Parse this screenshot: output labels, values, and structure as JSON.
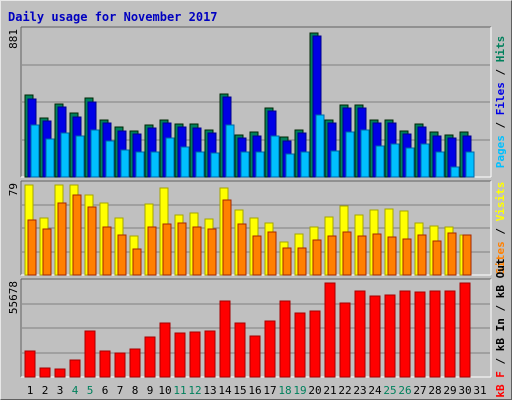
{
  "chart_data": {
    "title": "Daily usage for November 2017",
    "type": "bar",
    "days": [
      1,
      2,
      3,
      4,
      5,
      6,
      7,
      8,
      9,
      10,
      11,
      12,
      13,
      14,
      15,
      16,
      17,
      18,
      19,
      20,
      21,
      22,
      23,
      24,
      25,
      26,
      27,
      28,
      29,
      30,
      31
    ],
    "weekend_days": [
      4,
      5,
      11,
      12,
      18,
      19,
      25,
      26
    ],
    "panels": [
      {
        "name": "hits-files-pages",
        "ymax": 881,
        "ymax_label": "881",
        "axis_label": [
          "Pages",
          " / ",
          "Files",
          " / ",
          "Hits"
        ],
        "series": [
          {
            "name": "Hits",
            "color": "#00805c",
            "values": [
              495,
              355,
              440,
              385,
              475,
              345,
              300,
              280,
              315,
              345,
              322,
              318,
              285,
              500,
              255,
              270,
              418,
              240,
              285,
              870,
              345,
              435,
              435,
              345,
              345,
              280,
              320,
              270,
              255,
              270
            ]
          },
          {
            "name": "Files",
            "color": "#0000e6",
            "values": [
              470,
              335,
              420,
              365,
              455,
              325,
              280,
              260,
              295,
              325,
              302,
              298,
              265,
              480,
              235,
              250,
              398,
              220,
              265,
              850,
              325,
              415,
              415,
              325,
              325,
              260,
              300,
              250,
              235,
              250
            ]
          },
          {
            "name": "Pages",
            "color": "#00c0ff",
            "values": [
              315,
              230,
              265,
              250,
              285,
              220,
              160,
              150,
              150,
              235,
              180,
              150,
              145,
              315,
              150,
              150,
              250,
              140,
              150,
              375,
              155,
              270,
              285,
              190,
              200,
              175,
              200,
              150,
              60,
              150
            ]
          }
        ]
      },
      {
        "name": "visits-sites",
        "ymax": 79,
        "ymax_label": "79",
        "axis_label": [
          "Sites",
          " / ",
          "Visits"
        ],
        "series": [
          {
            "name": "Visits",
            "color": "#ffff00",
            "values": [
              79,
              50,
              79,
              79,
              70,
              63,
              50,
              34,
              62,
              76,
              53,
              54,
              49,
              76,
              57,
              50,
              46,
              29,
              36,
              42,
              51,
              61,
              53,
              57,
              58,
              56,
              46,
              43,
              42,
              35
            ]
          },
          {
            "name": "Sites",
            "color": "#ff8000",
            "values": [
              48,
              40,
              63,
              70,
              60,
              42,
              35,
              23,
              42,
              45,
              46,
              42,
              40,
              66,
              45,
              34,
              38,
              24,
              24,
              31,
              34,
              38,
              34,
              36,
              33,
              32,
              35,
              30,
              37,
              35
            ]
          }
        ]
      },
      {
        "name": "kbytes",
        "ymax": 55678,
        "ymax_label": "55678",
        "axis_label": [
          "kB F",
          " / ",
          "kB In",
          " / ",
          "kB Out"
        ],
        "series": [
          {
            "name": "kB F",
            "color": "#ff0000",
            "values": [
              15500,
              5500,
              5000,
              9800,
              27500,
              15500,
              14500,
              16500,
              23500,
              31700,
              26000,
              26500,
              27000,
              45000,
              32000,
              24000,
              33000,
              45000,
              37800,
              39000,
              55600,
              44000,
              51000,
              48000,
              48500,
              51000,
              50500,
              51000,
              51000,
              55500
            ]
          }
        ]
      }
    ]
  },
  "colors": {
    "title": "#0000c0",
    "tick": "#000000",
    "weekend_tick": "#00805c",
    "plot_bg": "#c0c0c0",
    "grid": "#808080"
  }
}
